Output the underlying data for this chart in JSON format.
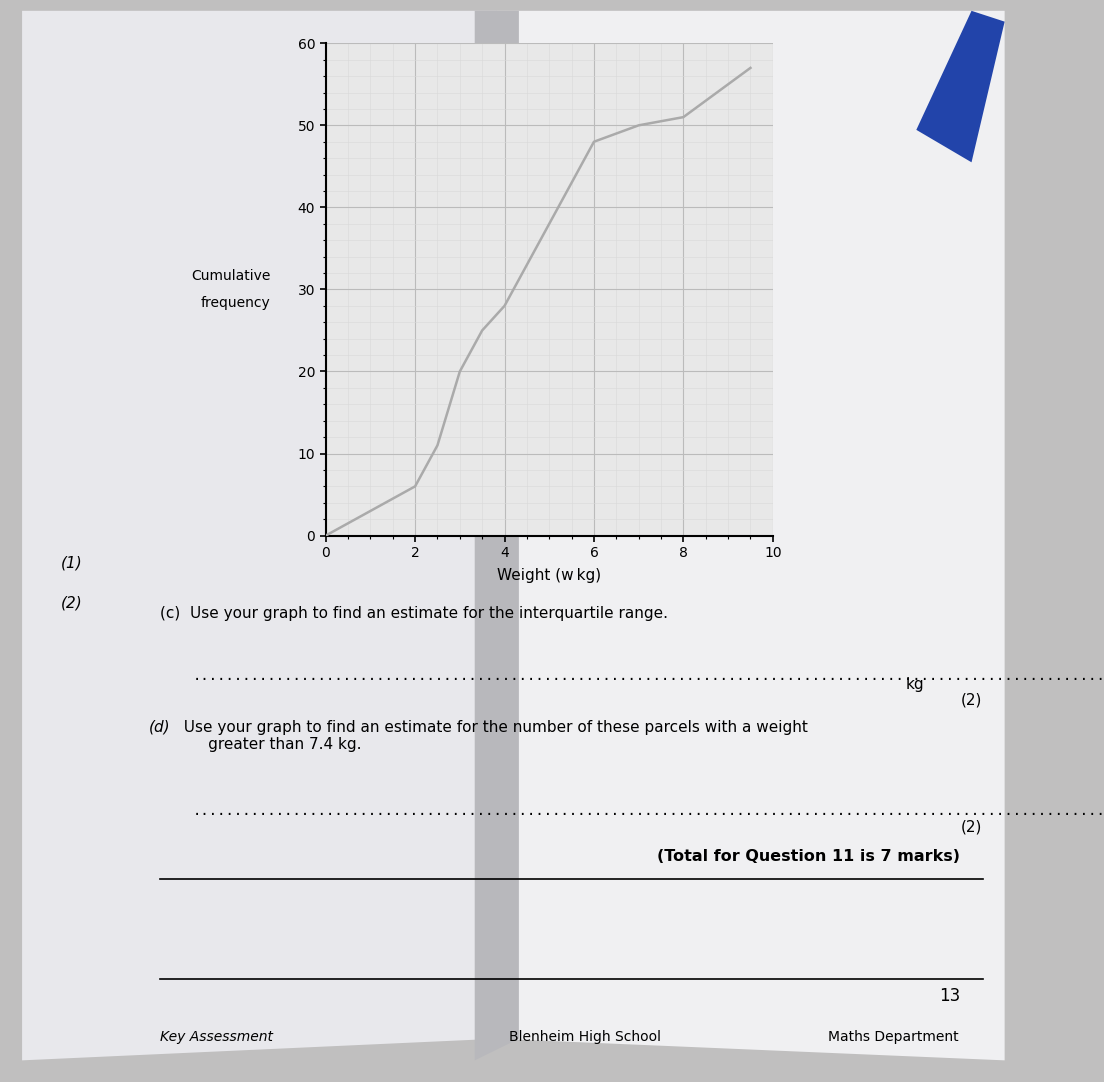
{
  "curve_x": [
    0,
    2.0,
    2.5,
    3.0,
    3.5,
    4.0,
    4.5,
    5.0,
    5.5,
    6.0,
    7.0,
    8.0,
    9.0,
    9.5
  ],
  "curve_y": [
    0,
    6,
    11,
    20,
    25,
    28,
    33,
    38,
    43,
    48,
    50,
    51,
    55,
    57
  ],
  "xlim": [
    0,
    10
  ],
  "ylim": [
    0,
    60
  ],
  "xlabel": "Weight (w kg)",
  "ylabel_line1": "Cumulative",
  "ylabel_line2": "frequency",
  "xticks": [
    0,
    2,
    4,
    6,
    8,
    10
  ],
  "yticks": [
    0,
    10,
    20,
    30,
    40,
    50,
    60
  ],
  "x_minor_interval": 0.5,
  "y_minor_interval": 2,
  "curve_color": "#aaaaaa",
  "grid_major_color": "#bbbbbb",
  "grid_minor_color": "#d8d8d8",
  "plot_bg_color": "#e8e8e8",
  "page_bg_color": "#e8e8e8",
  "paper_color": "#f0f0f2",
  "label_1": "(1)",
  "label_2": "(2)",
  "text_c": "(c)  Use your graph to find an estimate for the interquartile range.",
  "text_c_ans": ".......................................................................................................................",
  "text_c_kg": "kg",
  "text_c_marks": "(2)",
  "text_d_italic": "(d)",
  "text_d_body": "  Use your graph to find an estimate for the number of these parcels with a weight\n       greater than 7.4 kg.",
  "text_d_ans": ".......................................................................................................................",
  "text_d_marks": "(2)",
  "text_total": "(Total for Question 11 is 7 marks)",
  "page_num": "13",
  "footer_left": "Key Assessment",
  "footer_center": "Blenheim High School",
  "footer_right": "Maths Department"
}
